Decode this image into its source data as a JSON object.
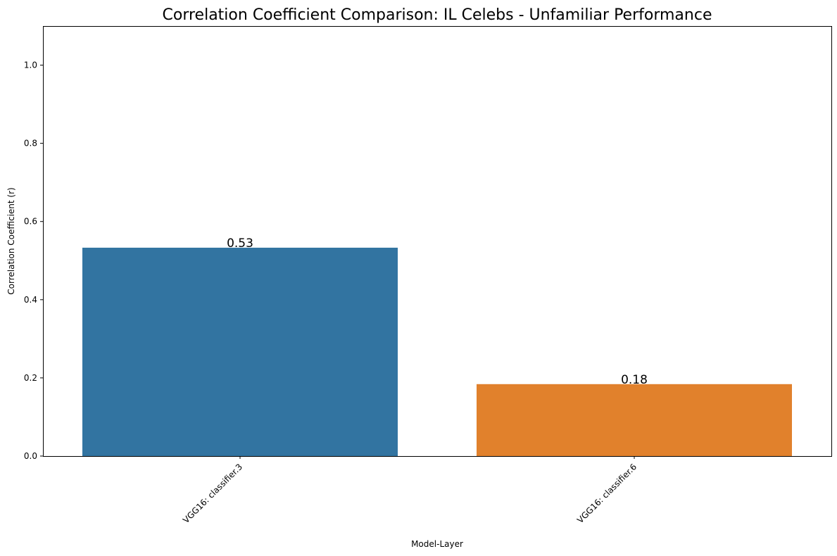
{
  "chart_data": {
    "type": "bar",
    "title": "Correlation Coefficient Comparison: IL Celebs - Unfamiliar Performance",
    "xlabel": "Model-Layer",
    "ylabel": "Correlation Coefficient (r)",
    "categories": [
      "VGG16: classifier.3",
      "VGG16: classifier.6"
    ],
    "values": [
      0.533,
      0.184
    ],
    "data_labels": [
      "0.53",
      "0.18"
    ],
    "colors": [
      "#3274a1",
      "#e1812c"
    ],
    "ylim": [
      0,
      1.1
    ],
    "yticks": [
      "0.0",
      "0.2",
      "0.4",
      "0.6",
      "0.8",
      "1.0"
    ],
    "grid": false,
    "legend": "none"
  }
}
